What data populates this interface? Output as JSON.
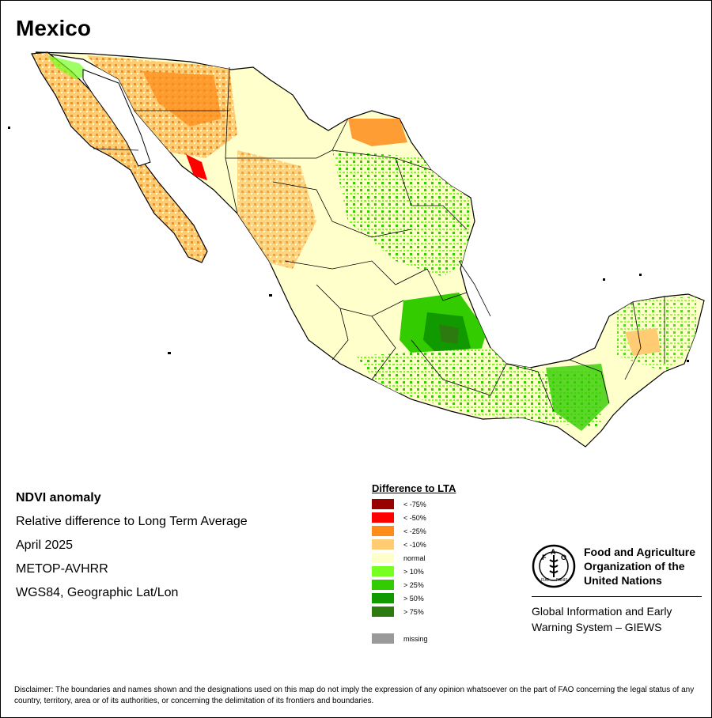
{
  "title": "Mexico",
  "info": {
    "name": "NDVI anomaly",
    "line2": "Relative difference to Long Term Average",
    "date": "April 2025",
    "sensor": "METOP-AVHRR",
    "projection": "WGS84, Geographic Lat/Lon"
  },
  "legend": {
    "title": "Difference to LTA",
    "items": [
      {
        "label": "< -75%",
        "color": "#990000"
      },
      {
        "label": "< -50%",
        "color": "#ff0000"
      },
      {
        "label": "< -25%",
        "color": "#ff8c1a"
      },
      {
        "label": "< -10%",
        "color": "#ffcc73"
      },
      {
        "label": "normal",
        "color": "#ffffcc"
      },
      {
        "label": "> 10%",
        "color": "#77ff22"
      },
      {
        "label": "> 25%",
        "color": "#33cc00"
      },
      {
        "label": "> 50%",
        "color": "#119900"
      },
      {
        "label": "> 75%",
        "color": "#2d7a10"
      }
    ],
    "missing": {
      "label": "missing",
      "color": "#999999"
    }
  },
  "logo": {
    "org_line1": "Food and Agriculture",
    "org_line2": "Organization of the",
    "org_line3": "United Nations",
    "giews_line1": "Global Information and Early",
    "giews_line2": "Warning System – GIEWS",
    "emblem_letters": "FAO",
    "emblem_motto": "FIAT PANIS"
  },
  "disclaimer": "Disclaimer: The boundaries and names shown and the designations used on this map do not imply the expression of any opinion whatsoever on the part of FAO concerning the legal status of any country, territory, area or of its authorities, or concerning the delimitation of its frontiers and boundaries."
}
